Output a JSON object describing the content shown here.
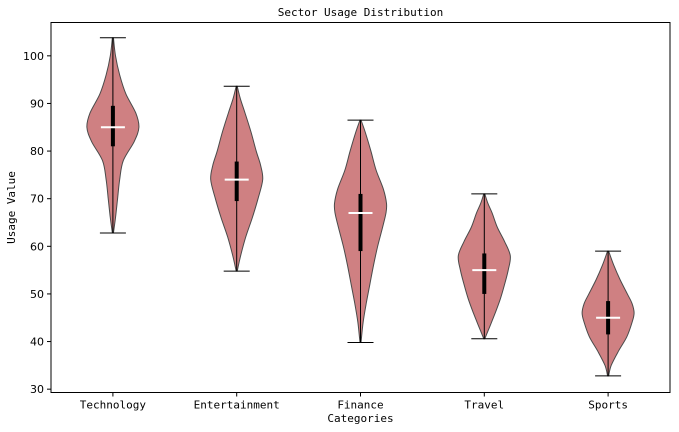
{
  "chart_data": {
    "type": "violin",
    "title": "Sector Usage Distribution",
    "xlabel": "Categories",
    "ylabel": "Usage Value",
    "ylim": [
      29.3,
      107.0
    ],
    "yticks": [
      30,
      40,
      50,
      60,
      70,
      80,
      90,
      100
    ],
    "grid": false,
    "fill_color": "#c46466",
    "categories": [
      "Technology",
      "Entertainment",
      "Finance",
      "Travel",
      "Sports"
    ],
    "series": [
      {
        "min": 62.8,
        "max": 103.8,
        "q1": 81.0,
        "median": 85.0,
        "q3": 89.5,
        "profile": [
          [
            62.8,
            0.02
          ],
          [
            66,
            0.1
          ],
          [
            70,
            0.18
          ],
          [
            74,
            0.26
          ],
          [
            78,
            0.4
          ],
          [
            82,
            0.82
          ],
          [
            85,
            1.0
          ],
          [
            88,
            0.88
          ],
          [
            92,
            0.5
          ],
          [
            96,
            0.26
          ],
          [
            100,
            0.1
          ],
          [
            103.8,
            0.02
          ]
        ]
      },
      {
        "min": 54.8,
        "max": 93.6,
        "q1": 69.5,
        "median": 74.0,
        "q3": 77.8,
        "profile": [
          [
            54.8,
            0.02
          ],
          [
            58,
            0.15
          ],
          [
            62,
            0.35
          ],
          [
            66,
            0.6
          ],
          [
            70,
            0.82
          ],
          [
            74,
            1.0
          ],
          [
            77,
            0.92
          ],
          [
            80,
            0.75
          ],
          [
            84,
            0.55
          ],
          [
            88,
            0.32
          ],
          [
            91,
            0.14
          ],
          [
            93.6,
            0.02
          ]
        ]
      },
      {
        "min": 39.8,
        "max": 86.5,
        "q1": 59.0,
        "median": 67.0,
        "q3": 71.0,
        "profile": [
          [
            39.8,
            0.02
          ],
          [
            44,
            0.1
          ],
          [
            48,
            0.22
          ],
          [
            52,
            0.36
          ],
          [
            56,
            0.5
          ],
          [
            60,
            0.66
          ],
          [
            64,
            0.85
          ],
          [
            67,
            0.98
          ],
          [
            69,
            1.0
          ],
          [
            72,
            0.88
          ],
          [
            76,
            0.6
          ],
          [
            80,
            0.4
          ],
          [
            84,
            0.18
          ],
          [
            86.5,
            0.02
          ]
        ]
      },
      {
        "min": 40.6,
        "max": 71.0,
        "q1": 50.0,
        "median": 55.0,
        "q3": 58.5,
        "profile": [
          [
            40.6,
            0.02
          ],
          [
            43,
            0.2
          ],
          [
            46,
            0.42
          ],
          [
            49,
            0.62
          ],
          [
            52,
            0.78
          ],
          [
            55,
            0.92
          ],
          [
            58,
            1.0
          ],
          [
            61,
            0.78
          ],
          [
            64,
            0.5
          ],
          [
            67,
            0.3
          ],
          [
            69,
            0.14
          ],
          [
            71,
            0.02
          ]
        ]
      },
      {
        "min": 32.8,
        "max": 59.0,
        "q1": 41.5,
        "median": 45.0,
        "q3": 48.5,
        "profile": [
          [
            32.8,
            0.02
          ],
          [
            35,
            0.12
          ],
          [
            38,
            0.4
          ],
          [
            41,
            0.72
          ],
          [
            44,
            0.92
          ],
          [
            46,
            1.0
          ],
          [
            48,
            0.92
          ],
          [
            50,
            0.74
          ],
          [
            53,
            0.46
          ],
          [
            56,
            0.22
          ],
          [
            59,
            0.02
          ]
        ]
      }
    ]
  }
}
